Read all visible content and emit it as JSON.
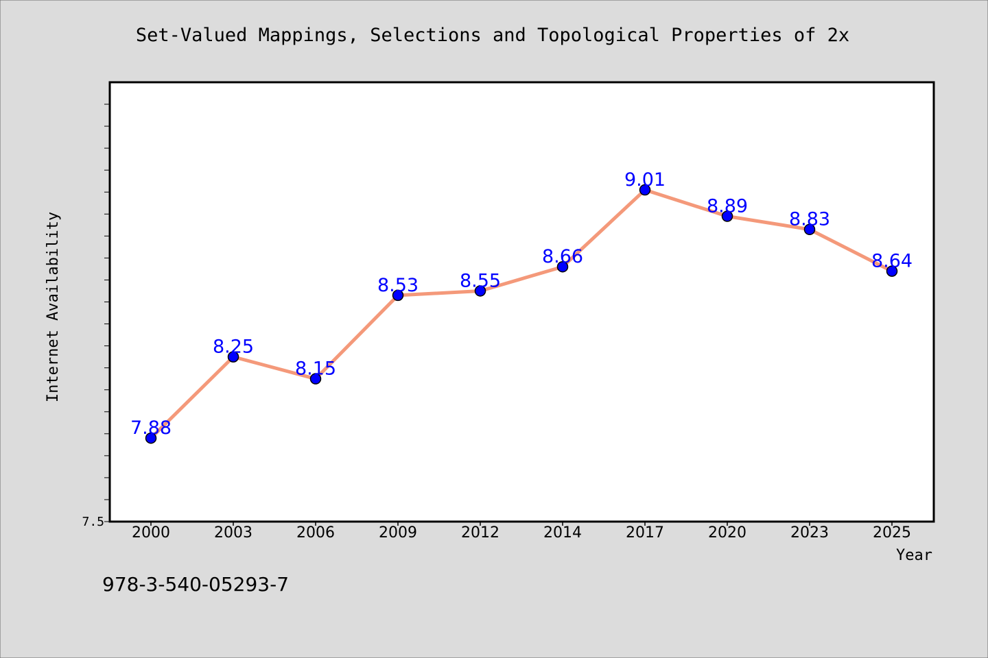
{
  "chart_data": {
    "type": "line",
    "title": "Set-Valued Mappings, Selections and Topological Properties of 2x",
    "xlabel": "Year",
    "ylabel": "Internet Availability",
    "categories": [
      "2000",
      "2003",
      "2006",
      "2009",
      "2012",
      "2014",
      "2017",
      "2020",
      "2023",
      "2025"
    ],
    "series": [
      {
        "values": [
          7.88,
          8.25,
          8.15,
          8.53,
          8.55,
          8.66,
          9.01,
          8.89,
          8.83,
          8.64
        ]
      }
    ],
    "data_labels": [
      "7.88",
      "8.25",
      "8.15",
      "8.53",
      "8.55",
      "8.66",
      "9.01",
      "8.89",
      "8.83",
      "8.64"
    ],
    "ylim": [
      7.5,
      9.5
    ],
    "y_tick_label": "7.5",
    "grid": false,
    "legend": "none"
  },
  "caption": "978-3-540-05293-7",
  "colors": {
    "background": "#dcdcdc",
    "plot_area": "#ffffff",
    "line": "#f4997a",
    "marker": "#0000ff",
    "marker_edge": "#000000",
    "data_label": "#0000ff",
    "text": "#000000"
  }
}
